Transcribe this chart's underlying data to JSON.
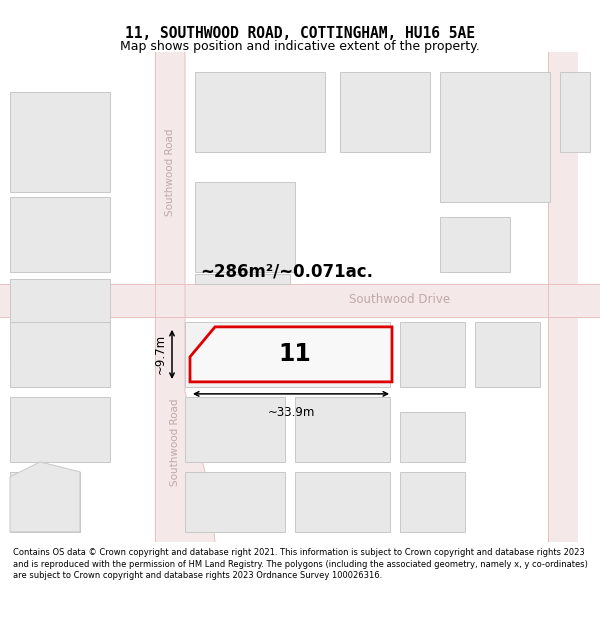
{
  "title": "11, SOUTHWOOD ROAD, COTTINGHAM, HU16 5AE",
  "subtitle": "Map shows position and indicative extent of the property.",
  "footer": "Contains OS data © Crown copyright and database right 2021. This information is subject to Crown copyright and database rights 2023 and is reproduced with the permission of HM Land Registry. The polygons (including the associated geometry, namely x, y co-ordinates) are subject to Crown copyright and database rights 2023 Ordnance Survey 100026316.",
  "map_bg": "#ffffff",
  "road_color": "#f5e8e8",
  "block_color": "#e8e8e8",
  "block_border": "#c8c8c8",
  "plot_fill": "#f8f8f8",
  "plot_border": "#dd0000",
  "road_line_color": "#e8c0c0",
  "area_text": "~286m²/~0.071ac.",
  "width_text": "~33.9m",
  "height_text": "~9.7m",
  "number_text": "11",
  "road_label_top": "Southwood Road",
  "road_label_bot": "Southwood Road",
  "road_label_h": "Southwood Drive"
}
